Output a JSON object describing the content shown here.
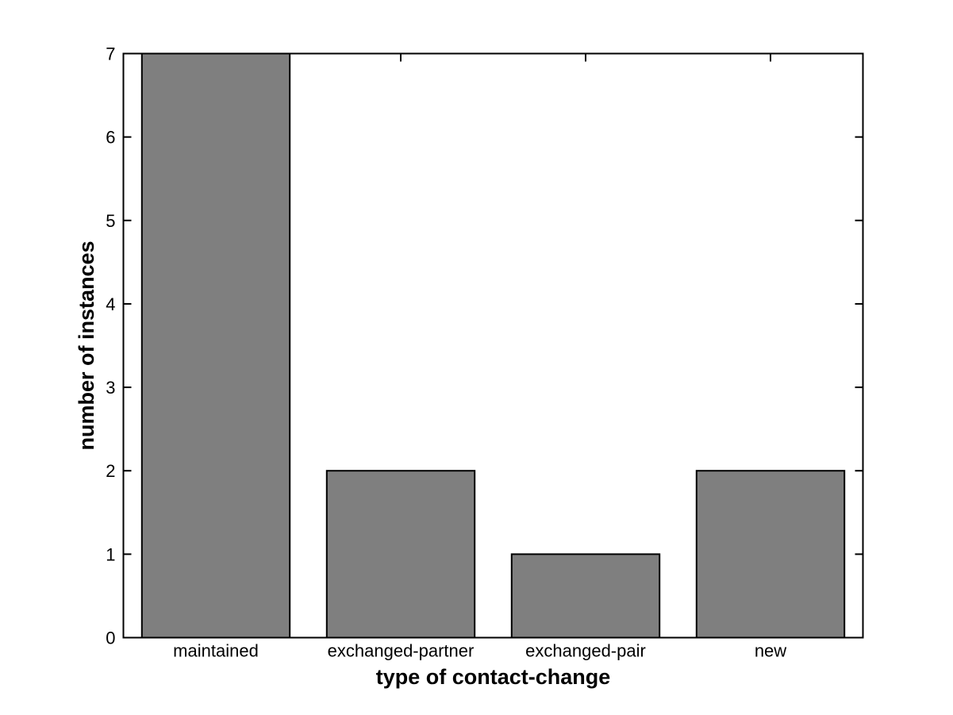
{
  "chart_data": {
    "type": "bar",
    "title": "",
    "categories": [
      "maintained",
      "exchanged-partner",
      "exchanged-pair",
      "new"
    ],
    "values": [
      7,
      2,
      1,
      2
    ],
    "xlabel": "type of contact-change",
    "ylabel": "number of instances",
    "ylim": [
      0,
      7
    ],
    "yticks": [
      "0",
      "1",
      "2",
      "3",
      "4",
      "5",
      "6",
      "7"
    ],
    "bar_width_fraction": 0.8,
    "grid": false,
    "legend": "none",
    "colors": {
      "bar_fill": "#7f7f7f",
      "bar_edge": "#000000",
      "axis": "#000000",
      "background": "#ffffff",
      "text": "#000000"
    }
  }
}
